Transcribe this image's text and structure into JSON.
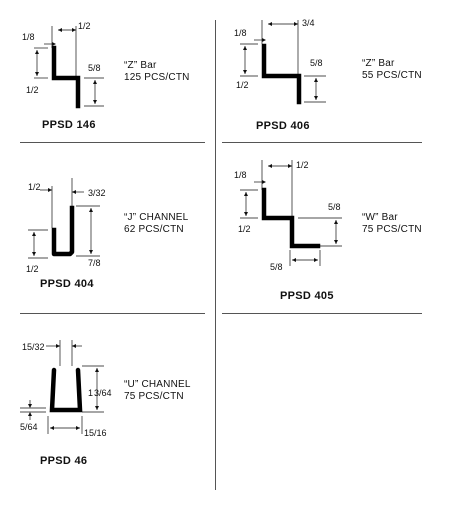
{
  "catalog": {
    "z146": {
      "dims": {
        "top_left": "1/8",
        "top_right": "1/2",
        "right": "5/8",
        "left": "1/2"
      },
      "desc_line1": "“Z” Bar",
      "desc_line2": "125 PCS/CTN",
      "part_number": "PPSD 146"
    },
    "z406": {
      "dims": {
        "top_left": "1/8",
        "top_right": "3/4",
        "right": "5/8",
        "left": "1/2"
      },
      "desc_line1": "“Z” Bar",
      "desc_line2": "55 PCS/CTN",
      "part_number": "PPSD 406"
    },
    "j404": {
      "dims": {
        "top_left": "1/2",
        "top_right": "3/32",
        "right": "7/8",
        "left": "1/2"
      },
      "desc_line1": "“J” CHANNEL",
      "desc_line2": "62 PCS/CTN",
      "part_number": "PPSD 404"
    },
    "w405": {
      "dims": {
        "top_left": "1/8",
        "top_right": "1/2",
        "right": "5/8",
        "left": "1/2",
        "bottom": "5/8"
      },
      "desc_line1": "“W” Bar",
      "desc_line2": "75 PCS/CTN",
      "part_number": "PPSD 405"
    },
    "u46": {
      "dims": {
        "top": "15/32",
        "right_whole": "1",
        "right_frac": "3/64",
        "left": "5/64",
        "bottom": "15/16"
      },
      "desc_line1": "“U” CHANNEL",
      "desc_line2": "75 PCS/CTN",
      "part_number": "PPSD 46"
    }
  }
}
